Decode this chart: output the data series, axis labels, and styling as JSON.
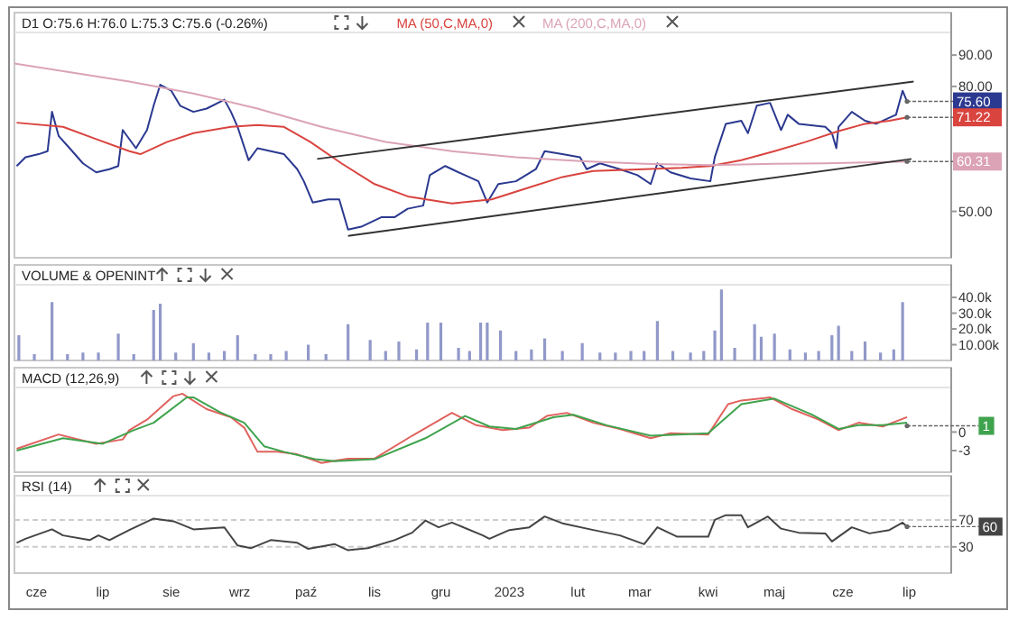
{
  "chart_data": [
    {
      "type": "line",
      "title": "D1 O:75.6 H:76.0 L:75.3 C:75.6 (-0.26%)",
      "log": true,
      "legend": "top left",
      "tick_labels": "y",
      "xlim": [
        "2022-05-22",
        "2023-07-20"
      ],
      "ylim": [
        42,
        98
      ],
      "yticks": [
        {
          "value": 50,
          "label": "50.00"
        },
        {
          "value": 80,
          "label": "80.00"
        },
        {
          "value": 90,
          "label": "90.00"
        }
      ],
      "series": [
        {
          "color": "#2b3990",
          "x": [
            "2022-05-23",
            "2022-05-27",
            "2022-06-02",
            "2022-06-06",
            "2022-06-08",
            "2022-06-11",
            "2022-06-16",
            "2022-06-22",
            "2022-06-28",
            "2022-07-04",
            "2022-07-08",
            "2022-07-10",
            "2022-07-16",
            "2022-07-21",
            "2022-07-24",
            "2022-07-27",
            "2022-08-01",
            "2022-08-05",
            "2022-08-11",
            "2022-08-17",
            "2022-08-25",
            "2022-08-28",
            "2022-08-31",
            "2022-09-05",
            "2022-09-09",
            "2022-09-15",
            "2022-09-21",
            "2022-09-27",
            "2022-09-30",
            "2022-10-04",
            "2022-10-11",
            "2022-10-16",
            "2022-10-20",
            "2022-10-26",
            "2022-11-04",
            "2022-11-10",
            "2022-11-16",
            "2022-11-23",
            "2022-11-26",
            "2022-12-03",
            "2022-12-09",
            "2022-12-18",
            "2022-12-22",
            "2022-12-27",
            "2023-01-04",
            "2023-01-13",
            "2023-01-17",
            "2023-01-25",
            "2023-02-02",
            "2023-02-05",
            "2023-02-11",
            "2023-02-20",
            "2023-02-28",
            "2023-03-06",
            "2023-03-09",
            "2023-03-15",
            "2023-03-24",
            "2023-04-02",
            "2023-04-04",
            "2023-04-09",
            "2023-04-16",
            "2023-04-19",
            "2023-04-23",
            "2023-04-29",
            "2023-05-04",
            "2023-05-07",
            "2023-05-12",
            "2023-05-24",
            "2023-05-27",
            "2023-05-29",
            "2023-05-30",
            "2023-06-05",
            "2023-06-11",
            "2023-06-16",
            "2023-06-22",
            "2023-06-25",
            "2023-06-28",
            "2023-06-30"
          ],
          "values": [
            59.3,
            61.3,
            62.0,
            62.7,
            72.7,
            66.4,
            63.4,
            59.9,
            57.9,
            58.6,
            59.3,
            67.9,
            63.4,
            67.9,
            74.4,
            80.5,
            78.7,
            74.4,
            72.7,
            73.6,
            76.1,
            72.7,
            68.7,
            60.6,
            63.4,
            62.7,
            62.0,
            58.6,
            56.0,
            51.7,
            52.3,
            52.3,
            46.7,
            47.2,
            48.9,
            48.9,
            50.5,
            51.1,
            57.3,
            59.3,
            57.9,
            56.0,
            51.7,
            55.4,
            56.0,
            58.6,
            62.7,
            62.0,
            61.3,
            58.6,
            59.9,
            58.6,
            57.3,
            55.4,
            59.9,
            57.9,
            56.6,
            56.0,
            61.3,
            69.5,
            70.3,
            67.1,
            74.4,
            75.2,
            67.9,
            71.9,
            69.5,
            68.7,
            67.1,
            63.4,
            68.7,
            72.7,
            70.3,
            69.5,
            71.1,
            71.9,
            78.7,
            75.6
          ]
        },
        {
          "name": "MA (50,C,MA,0)",
          "color": "#d9443f",
          "x": [
            "2022-05-23",
            "2022-06-13",
            "2022-06-28",
            "2022-07-13",
            "2022-07-18",
            "2022-07-30",
            "2022-08-11",
            "2022-08-28",
            "2022-09-09",
            "2022-09-21",
            "2022-10-03",
            "2022-10-17",
            "2022-11-01",
            "2022-11-16",
            "2022-12-06",
            "2022-12-24",
            "2023-01-10",
            "2023-01-25",
            "2023-02-08",
            "2023-03-03",
            "2023-03-20",
            "2023-04-02",
            "2023-04-16",
            "2023-05-01",
            "2023-05-15",
            "2023-05-30",
            "2023-06-11",
            "2023-06-22",
            "2023-06-30"
          ],
          "values": [
            69.8,
            68.7,
            65.6,
            62.7,
            62.0,
            64.9,
            67.1,
            68.7,
            69.2,
            68.7,
            64.9,
            59.9,
            55.4,
            52.9,
            51.5,
            52.3,
            54.7,
            56.9,
            58.2,
            58.6,
            58.9,
            59.3,
            60.6,
            62.7,
            64.9,
            67.6,
            69.5,
            70.3,
            71.22
          ]
        },
        {
          "name": "MA (200,C,MA,0)",
          "color": "#dba3b5",
          "x": [
            "2022-05-22",
            "2022-07-13",
            "2022-08-11",
            "2022-09-09",
            "2022-10-08",
            "2022-11-06",
            "2022-12-06",
            "2023-01-04",
            "2023-02-02",
            "2023-03-03",
            "2023-04-02",
            "2023-05-01",
            "2023-05-24",
            "2023-06-30"
          ],
          "values": [
            87.2,
            81.5,
            77.9,
            73.6,
            68.7,
            64.9,
            62.7,
            61.3,
            60.4,
            59.8,
            59.5,
            59.8,
            59.9,
            60.31
          ]
        },
        {
          "type": "line",
          "color": "#333333",
          "x": [
            "2022-10-06",
            "2023-07-03"
          ],
          "values": [
            60.9,
            81.5
          ]
        },
        {
          "type": "line",
          "color": "#333333",
          "x": [
            "2022-10-20",
            "2023-07-02"
          ],
          "values": [
            45.6,
            60.9
          ]
        }
      ],
      "annotations": [
        {
          "text": "75.60",
          "x": "2023-06-30",
          "y": 75.6
        },
        {
          "text": "71.22",
          "x": "2023-06-30",
          "y": 71.22
        },
        {
          "text": "60.31",
          "x": "2023-06-30",
          "y": 60.31
        }
      ]
    },
    {
      "type": "bar",
      "title": "VOLUME & OPENINT",
      "tick_labels": "y",
      "xlim": [
        "2022-05-22",
        "2023-07-20"
      ],
      "ylim": [
        0,
        48000
      ],
      "yticks": [
        {
          "value": 10000,
          "label": "10.00k"
        },
        {
          "value": 20000,
          "label": "20.0k"
        },
        {
          "value": 30000,
          "label": "30.0k"
        },
        {
          "value": 40000,
          "label": "40.0k"
        }
      ],
      "series": [
        {
          "color": "#9199c9",
          "x": [
            "2022-05-24",
            "2022-05-31",
            "2022-06-08",
            "2022-06-15",
            "2022-06-22",
            "2022-06-29",
            "2022-07-08",
            "2022-07-15",
            "2022-07-24",
            "2022-07-27",
            "2022-08-03",
            "2022-08-11",
            "2022-08-18",
            "2022-08-25",
            "2022-08-31",
            "2022-09-08",
            "2022-09-15",
            "2022-09-22",
            "2022-10-02",
            "2022-10-10",
            "2022-10-20",
            "2022-10-30",
            "2022-11-06",
            "2022-11-12",
            "2022-11-20",
            "2022-11-25",
            "2022-12-01",
            "2022-12-09",
            "2022-12-14",
            "2022-12-19",
            "2022-12-22",
            "2022-12-28",
            "2023-01-04",
            "2023-01-11",
            "2023-01-17",
            "2023-01-25",
            "2023-02-03",
            "2023-02-11",
            "2023-02-18",
            "2023-02-25",
            "2023-03-03",
            "2023-03-09",
            "2023-03-16",
            "2023-03-24",
            "2023-03-30",
            "2023-04-04",
            "2023-04-07",
            "2023-04-13",
            "2023-04-22",
            "2023-04-25",
            "2023-05-01",
            "2023-05-08",
            "2023-05-15",
            "2023-05-21",
            "2023-05-27",
            "2023-05-30",
            "2023-06-05",
            "2023-06-11",
            "2023-06-18",
            "2023-06-24",
            "2023-06-28"
          ],
          "values": [
            16000,
            4000,
            37000,
            4000,
            5000,
            5000,
            17000,
            4000,
            32000,
            36000,
            5000,
            11000,
            5000,
            6000,
            16000,
            4000,
            4000,
            6000,
            10000,
            4000,
            23000,
            13000,
            6000,
            12000,
            7000,
            24000,
            24000,
            8000,
            6000,
            24000,
            24000,
            19000,
            6000,
            7000,
            14000,
            6000,
            11000,
            5000,
            5000,
            6000,
            6000,
            25000,
            6000,
            5000,
            6000,
            19000,
            45000,
            8000,
            23000,
            15000,
            17000,
            7000,
            5000,
            6000,
            16000,
            22000,
            6000,
            12000,
            5000,
            7000,
            37000
          ]
        }
      ]
    },
    {
      "type": "line",
      "title": "MACD (12,26,9)",
      "tick_labels": "y",
      "xlim": [
        "2022-05-22",
        "2023-07-20"
      ],
      "ylim": [
        -6.5,
        7.2
      ],
      "yticks": [
        -3,
        0
      ],
      "series": [
        {
          "color": "#e0625e",
          "x": [
            "2022-05-23",
            "2022-06-11",
            "2022-06-28",
            "2022-07-10",
            "2022-07-13",
            "2022-07-21",
            "2022-08-02",
            "2022-08-06",
            "2022-08-17",
            "2022-08-28",
            "2022-09-03",
            "2022-09-09",
            "2022-09-18",
            "2022-09-27",
            "2022-10-08",
            "2022-10-20",
            "2022-11-01",
            "2022-11-18",
            "2022-12-06",
            "2022-12-17",
            "2022-12-29",
            "2023-01-10",
            "2023-01-18",
            "2023-01-27",
            "2023-02-08",
            "2023-02-20",
            "2023-03-06",
            "2023-03-15",
            "2023-04-01",
            "2023-04-10",
            "2023-04-16",
            "2023-04-29",
            "2023-05-09",
            "2023-05-21",
            "2023-05-30",
            "2023-06-08",
            "2023-06-19",
            "2023-06-30"
          ],
          "values": [
            -2.7,
            -0.4,
            -1.9,
            -1.2,
            0.3,
            2.0,
            5.8,
            6.2,
            3.7,
            2.4,
            0.7,
            -3.2,
            -3.2,
            -3.6,
            -5.0,
            -4.3,
            -4.3,
            -0.6,
            3.1,
            1.1,
            0.3,
            0.7,
            2.6,
            3.1,
            1.5,
            0.5,
            -1.0,
            -0.2,
            -0.4,
            4.5,
            5.1,
            5.6,
            3.7,
            2.0,
            0.3,
            1.5,
            0.9,
            2.4
          ]
        },
        {
          "color": "#3fa34d",
          "x": [
            "2022-05-23",
            "2022-06-13",
            "2022-07-01",
            "2022-07-15",
            "2022-07-24",
            "2022-08-08",
            "2022-08-11",
            "2022-08-23",
            "2022-09-03",
            "2022-09-12",
            "2022-09-21",
            "2022-10-05",
            "2022-10-14",
            "2022-11-01",
            "2022-11-24",
            "2022-12-12",
            "2022-12-23",
            "2023-01-04",
            "2023-01-21",
            "2023-01-30",
            "2023-02-14",
            "2023-03-06",
            "2023-04-01",
            "2023-04-16",
            "2023-05-01",
            "2023-05-18",
            "2023-05-30",
            "2023-06-08",
            "2023-06-19",
            "2023-06-30"
          ],
          "values": [
            -3.0,
            -1.0,
            -1.9,
            0.3,
            1.5,
            5.6,
            5.6,
            3.2,
            1.5,
            -2.3,
            -3.2,
            -4.4,
            -4.7,
            -4.4,
            -1.0,
            2.6,
            0.9,
            0.5,
            2.4,
            2.8,
            1.1,
            -0.6,
            -0.2,
            4.5,
            5.4,
            2.8,
            0.5,
            1.1,
            1.1,
            1.5
          ]
        }
      ],
      "annotations": [
        {
          "text": "1",
          "x": "2023-06-30",
          "y": 1
        }
      ]
    },
    {
      "type": "line",
      "title": "RSI (14)",
      "xlim": [
        "2022-05-22",
        "2023-07-20"
      ],
      "ylim": [
        -9,
        106
      ],
      "xticks": [
        {
          "value": "2022-06-01",
          "label": "cze"
        },
        {
          "value": "2022-07-01",
          "label": "lip"
        },
        {
          "value": "2022-08-01",
          "label": "sie"
        },
        {
          "value": "2022-09-01",
          "label": "wrz"
        },
        {
          "value": "2022-10-01",
          "label": "paź"
        },
        {
          "value": "2022-11-01",
          "label": "lis"
        },
        {
          "value": "2022-12-01",
          "label": "gru"
        },
        {
          "value": "2023-01-01",
          "label": "2023"
        },
        {
          "value": "2023-02-01",
          "label": "lut"
        },
        {
          "value": "2023-03-01",
          "label": "mar"
        },
        {
          "value": "2023-04-01",
          "label": "kwi"
        },
        {
          "value": "2023-05-01",
          "label": "maj"
        },
        {
          "value": "2023-06-01",
          "label": "cze"
        },
        {
          "value": "2023-07-01",
          "label": "lip"
        }
      ],
      "yticks": [
        30,
        70
      ],
      "ref_lines": [
        {
          "axis": "y",
          "value": 30,
          "color": "#cccccc",
          "line_style": "dashed"
        },
        {
          "axis": "y",
          "value": 70,
          "color": "#cccccc",
          "line_style": "dashed"
        }
      ],
      "series": [
        {
          "color": "#444444",
          "x": [
            "2022-05-23",
            "2022-05-27",
            "2022-06-08",
            "2022-06-13",
            "2022-06-25",
            "2022-06-29",
            "2022-07-04",
            "2022-07-13",
            "2022-07-24",
            "2022-08-02",
            "2022-08-11",
            "2022-08-25",
            "2022-08-31",
            "2022-09-06",
            "2022-09-15",
            "2022-09-27",
            "2022-10-02",
            "2022-10-14",
            "2022-10-20",
            "2022-10-29",
            "2022-11-10",
            "2022-11-18",
            "2022-11-24",
            "2022-11-30",
            "2022-12-06",
            "2022-12-20",
            "2022-12-23",
            "2023-01-01",
            "2023-01-10",
            "2023-01-17",
            "2023-01-25",
            "2023-02-08",
            "2023-02-20",
            "2023-03-03",
            "2023-03-09",
            "2023-03-18",
            "2023-04-01",
            "2023-04-04",
            "2023-04-09",
            "2023-04-16",
            "2023-04-19",
            "2023-04-28",
            "2023-05-04",
            "2023-05-12",
            "2023-05-24",
            "2023-05-27",
            "2023-06-05",
            "2023-06-13",
            "2023-06-22",
            "2023-06-28",
            "2023-06-30"
          ],
          "values": [
            36,
            42,
            56,
            47,
            40,
            47,
            40,
            55,
            72,
            68,
            56,
            59,
            32,
            28,
            40,
            36,
            27,
            34,
            25,
            28,
            40,
            51,
            69,
            59,
            66,
            47,
            42,
            55,
            59,
            75,
            65,
            55,
            47,
            34,
            59,
            45,
            45,
            70,
            77,
            77,
            59,
            75,
            57,
            51,
            50,
            38,
            59,
            50,
            55,
            66,
            60
          ]
        }
      ],
      "annotations": [
        {
          "text": "60",
          "x": "2023-06-30",
          "y": 60
        }
      ]
    }
  ]
}
